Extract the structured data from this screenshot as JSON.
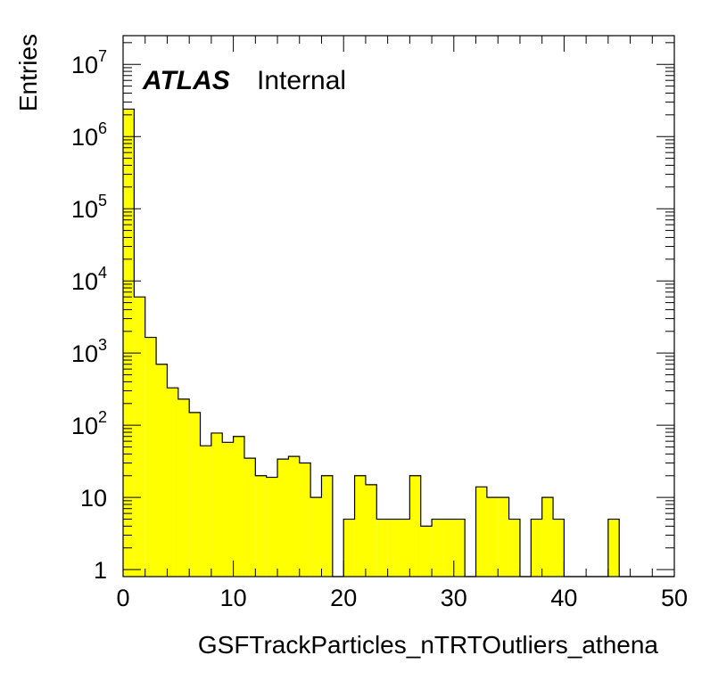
{
  "chart_data": {
    "type": "histogram",
    "xlabel": "GSFTrackParticles_nTRTOutliers_athena",
    "ylabel": "Entries",
    "xlim": [
      0,
      50
    ],
    "ylim": [
      0.8,
      25000000
    ],
    "yscale": "log",
    "bin_width": 1,
    "fill_color": "#ffff00",
    "line_color": "#000000",
    "x_ticks": [
      "0",
      "10",
      "20",
      "30",
      "40",
      "50"
    ],
    "y_ticks": [
      {
        "base": "1",
        "exp": ""
      },
      {
        "base": "10",
        "exp": ""
      },
      {
        "base": "10",
        "exp": "2"
      },
      {
        "base": "10",
        "exp": "3"
      },
      {
        "base": "10",
        "exp": "4"
      },
      {
        "base": "10",
        "exp": "5"
      },
      {
        "base": "10",
        "exp": "6"
      },
      {
        "base": "10",
        "exp": "7"
      }
    ],
    "bin_edges_start": 0,
    "values": [
      2400000,
      6000,
      1650,
      700,
      330,
      230,
      150,
      52,
      78,
      58,
      70,
      35,
      20,
      19,
      34,
      37,
      30,
      10,
      20,
      0,
      5,
      20,
      15,
      5,
      5,
      5,
      20,
      4,
      5,
      5,
      5,
      0,
      14,
      10,
      10,
      5,
      0,
      5,
      10,
      5,
      0,
      0,
      0,
      0,
      5,
      0,
      0,
      0,
      0,
      0
    ]
  },
  "labels": {
    "atlas": "ATLAS",
    "internal": "Internal"
  }
}
